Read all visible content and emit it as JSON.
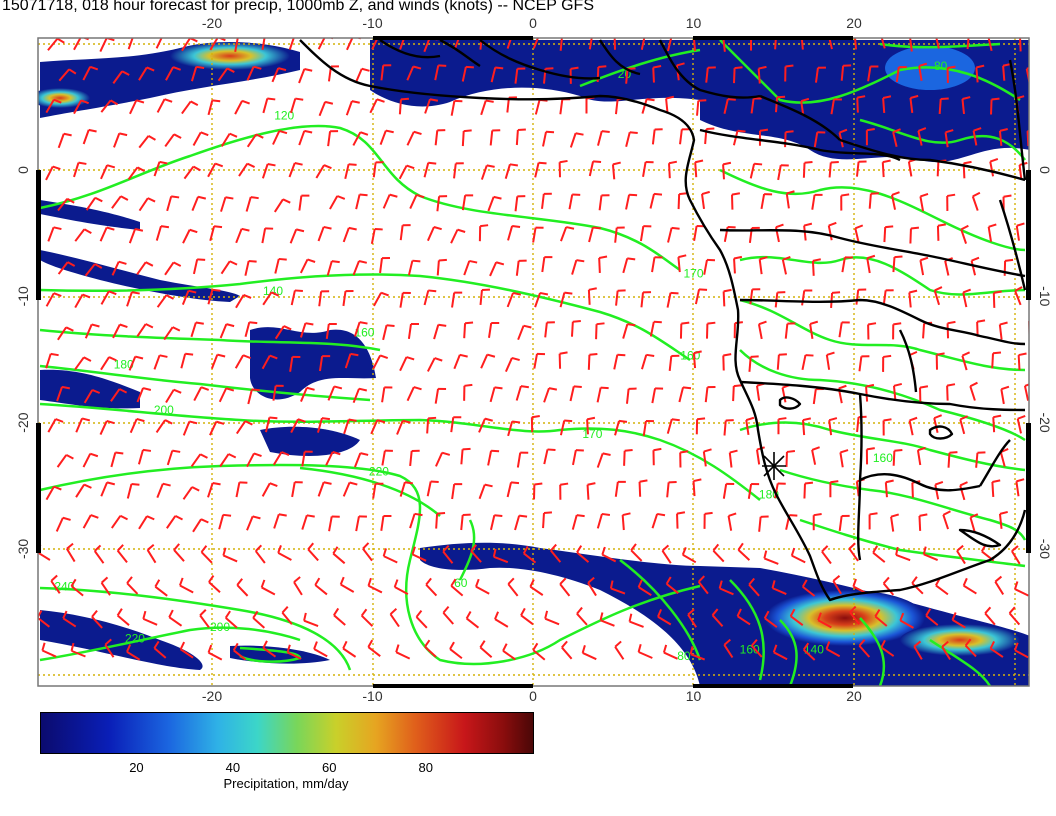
{
  "title": "15071718, 018 hour forecast for precip, 1000mb Z, and winds (knots) -- NCEP GFS",
  "axes": {
    "lon_ticks": [
      -20,
      -10,
      0,
      10,
      20
    ],
    "lat_ticks": [
      0,
      -10,
      -20,
      -30
    ]
  },
  "contour_labels": [
    {
      "text": "120",
      "lon": -15.5,
      "lat": 4.0
    },
    {
      "text": "140",
      "lon": -16.2,
      "lat": -9.9
    },
    {
      "text": "160",
      "lon": -10.5,
      "lat": -13.2
    },
    {
      "text": "180",
      "lon": -25.5,
      "lat": -15.7
    },
    {
      "text": "200",
      "lon": -23.0,
      "lat": -19.3
    },
    {
      "text": "220",
      "lon": -9.6,
      "lat": -24.2
    },
    {
      "text": "170",
      "lon": 3.7,
      "lat": -21.2
    },
    {
      "text": "160",
      "lon": 9.8,
      "lat": -15.0
    },
    {
      "text": "170",
      "lon": 10.0,
      "lat": -8.5
    },
    {
      "text": "180",
      "lon": 14.7,
      "lat": -26.0
    },
    {
      "text": "160",
      "lon": 21.8,
      "lat": -23.1
    },
    {
      "text": "240",
      "lon": -29.2,
      "lat": -33.3
    },
    {
      "text": "220",
      "lon": -24.8,
      "lat": -37.4
    },
    {
      "text": "200",
      "lon": -19.5,
      "lat": -36.5
    },
    {
      "text": "60",
      "lon": -4.5,
      "lat": -33.0
    },
    {
      "text": "80",
      "lon": 9.4,
      "lat": -38.8
    },
    {
      "text": "160",
      "lon": 13.5,
      "lat": -38.3
    },
    {
      "text": "140",
      "lon": 17.5,
      "lat": -38.3
    },
    {
      "text": "20",
      "lon": 5.7,
      "lat": 7.3
    },
    {
      "text": "80",
      "lon": 25.4,
      "lat": 7.9
    }
  ],
  "colorbar": {
    "label": "Precipitation, mm/day",
    "ticks": [
      "20",
      "40",
      "60",
      "80"
    ],
    "range": [
      0,
      100
    ]
  },
  "colors": {
    "wind_barb": "#ff1e1e",
    "height_contour": "#22ee22",
    "coastline": "#000000",
    "grid": "#d4b20a",
    "precip_low": "#0b0b6e",
    "precip_high": "#8a0d0d"
  }
}
